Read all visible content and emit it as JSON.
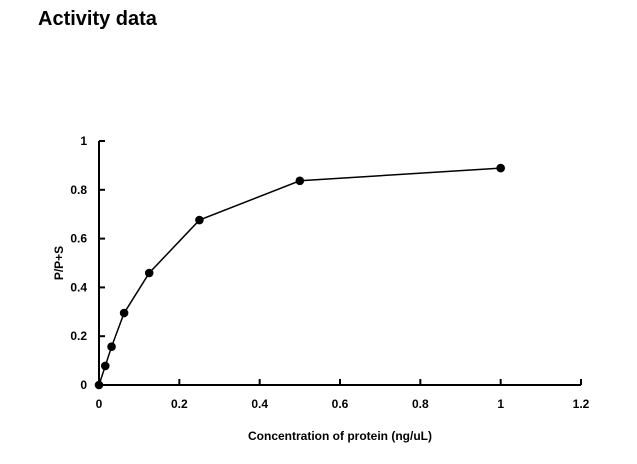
{
  "page_title": "Activity data",
  "chart_data": {
    "type": "line",
    "title": "",
    "xlabel": "Concentration of protein (ng/uL)",
    "ylabel": "P/P+S",
    "xlim": [
      0,
      1.2
    ],
    "ylim": [
      0,
      1
    ],
    "xticks": [
      0,
      0.2,
      0.4,
      0.6,
      0.8,
      1,
      1.2
    ],
    "yticks": [
      0,
      0.2,
      0.4,
      0.6,
      0.8,
      1
    ],
    "xtick_labels": [
      "0",
      "0.2",
      "0.4",
      "0.6",
      "0.8",
      "1",
      "1.2"
    ],
    "ytick_labels": [
      "0",
      "0.2",
      "0.4",
      "0.6",
      "0.8",
      "1"
    ],
    "grid": false,
    "marker": "circle",
    "color": "#000000",
    "series": [
      {
        "x": [
          0,
          0.0156,
          0.03125,
          0.0625,
          0.125,
          0.25,
          0.5,
          1
        ],
        "y": [
          0,
          0.078,
          0.157,
          0.295,
          0.459,
          0.676,
          0.837,
          0.889
        ]
      }
    ]
  }
}
